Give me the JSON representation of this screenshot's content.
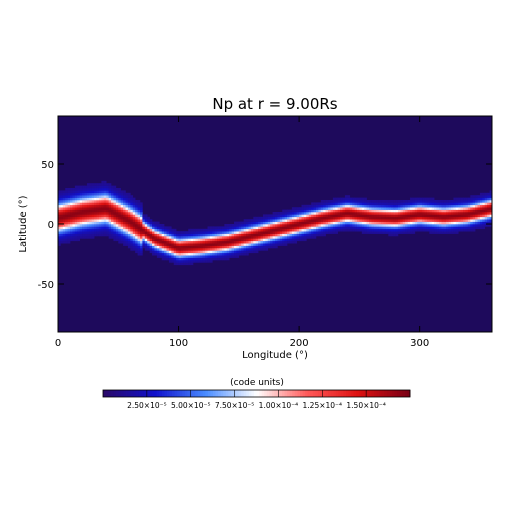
{
  "chart_data": {
    "type": "heatmap",
    "title": "Np at r = 9.00Rs",
    "xlabel": "Longitude (°)",
    "ylabel": "Latitude (°)",
    "xlim": [
      0,
      360
    ],
    "ylim": [
      -90,
      90
    ],
    "xticks": [
      0,
      100,
      200,
      300
    ],
    "yticks": [
      -50,
      0,
      50
    ],
    "grid": false,
    "colorbar": {
      "label": "(code units)",
      "orientation": "horizontal",
      "placement": "bottom",
      "range": [
        0,
        0.000175
      ],
      "ticks": [
        {
          "value": 2.5e-05,
          "label": "2.50×10⁻⁵"
        },
        {
          "value": 5e-05,
          "label": "5.00×10⁻⁵"
        },
        {
          "value": 7.5e-05,
          "label": "7.50×10⁻⁵"
        },
        {
          "value": 0.0001,
          "label": "1.00×10⁻⁴"
        },
        {
          "value": 0.000125,
          "label": "1.25×10⁻⁴"
        },
        {
          "value": 0.00015,
          "label": "1.50×10⁻⁴"
        }
      ],
      "colors": [
        "#2a0a6a",
        "#1111cc",
        "#4a8cff",
        "#ffffff",
        "#ff5a5a",
        "#dd1111",
        "#7a0015"
      ]
    },
    "current_sheet": {
      "description_values": "peak density ridge latitude vs longitude",
      "longitude": [
        0,
        20,
        40,
        60,
        80,
        100,
        120,
        140,
        160,
        180,
        200,
        220,
        240,
        260,
        280,
        300,
        320,
        340,
        360
      ],
      "latitude": [
        5,
        10,
        13,
        2,
        -12,
        -20,
        -18,
        -15,
        -10,
        -5,
        0,
        5,
        9,
        6,
        5,
        8,
        6,
        8,
        13
      ],
      "peak_value": 0.00017,
      "background_value": 8e-06
    }
  }
}
